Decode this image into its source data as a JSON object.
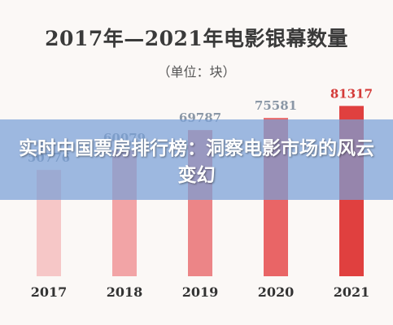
{
  "chart_data": {
    "type": "bar",
    "title": "2017年—2021年电影银幕数量",
    "subtitle": "（单位：块）",
    "categories": [
      "2017",
      "2018",
      "2019",
      "2020",
      "2021"
    ],
    "values": [
      50776,
      60079,
      69787,
      75581,
      81317
    ],
    "ylim": [
      0,
      90000
    ],
    "colors": [
      "#f6c7c7",
      "#f2a4a6",
      "#ec8587",
      "#e96566",
      "#e0403f"
    ],
    "value_label_color": "#8a97a6",
    "highlight_value_color": "#d43a38",
    "grid": false
  },
  "overlay": {
    "headline": "实时中国票房排行榜：洞察电影市场的风云变幻"
  }
}
